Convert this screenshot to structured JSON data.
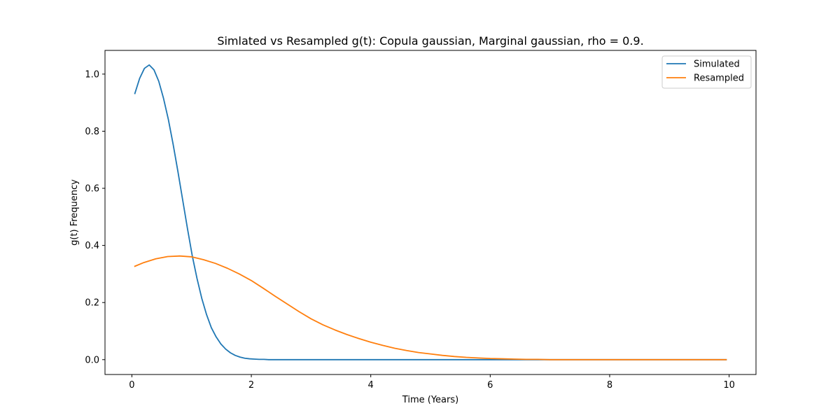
{
  "chart_data": {
    "type": "line",
    "title": "Simlated vs Resampled g(t): Copula gaussian, Marginal gaussian, rho =  0.9.",
    "xlabel": "Time (Years)",
    "ylabel": "g(t) Frequency",
    "xlim": [
      -0.45,
      10.45
    ],
    "ylim": [
      -0.052,
      1.083
    ],
    "xticks": [
      0,
      2,
      4,
      6,
      8,
      10
    ],
    "xtick_labels": [
      "0",
      "2",
      "4",
      "6",
      "8",
      "10"
    ],
    "yticks": [
      0.0,
      0.2,
      0.4,
      0.6,
      0.8,
      1.0
    ],
    "ytick_labels": [
      "0.0",
      "0.2",
      "0.4",
      "0.6",
      "0.8",
      "1.0"
    ],
    "grid": false,
    "legend_position": "top-right",
    "series": [
      {
        "name": "Simulated",
        "color": "#1f77b4",
        "x": [
          0.05,
          0.13,
          0.21,
          0.29,
          0.37,
          0.45,
          0.53,
          0.61,
          0.69,
          0.77,
          0.85,
          0.93,
          1.01,
          1.09,
          1.17,
          1.25,
          1.33,
          1.41,
          1.49,
          1.57,
          1.65,
          1.73,
          1.81,
          1.89,
          1.97,
          2.05,
          2.13,
          2.21,
          2.29,
          2.4,
          2.6,
          2.8,
          3.0,
          3.5,
          4.0,
          5.0,
          6.0,
          7.0,
          8.0,
          9.0,
          9.95
        ],
        "y": [
          0.932,
          0.985,
          1.02,
          1.032,
          1.015,
          0.975,
          0.915,
          0.842,
          0.755,
          0.66,
          0.56,
          0.46,
          0.365,
          0.285,
          0.215,
          0.158,
          0.112,
          0.08,
          0.055,
          0.037,
          0.024,
          0.015,
          0.009,
          0.005,
          0.003,
          0.002,
          0.001,
          0.001,
          0.0,
          0.0,
          0.0,
          0.0,
          0.0,
          0.0,
          0.0,
          0.0,
          0.0,
          0.0,
          0.0,
          0.0,
          0.0
        ]
      },
      {
        "name": "Resampled",
        "color": "#ff7f0e",
        "x": [
          0.05,
          0.2,
          0.4,
          0.6,
          0.8,
          1.0,
          1.2,
          1.4,
          1.6,
          1.8,
          2.0,
          2.2,
          2.4,
          2.6,
          2.8,
          3.0,
          3.2,
          3.4,
          3.6,
          3.8,
          4.0,
          4.2,
          4.4,
          4.6,
          4.8,
          5.0,
          5.2,
          5.4,
          5.6,
          5.8,
          6.0,
          6.2,
          6.4,
          6.6,
          6.8,
          7.0,
          7.5,
          8.0,
          8.5,
          9.0,
          9.5,
          9.95
        ],
        "y": [
          0.327,
          0.34,
          0.353,
          0.361,
          0.363,
          0.36,
          0.35,
          0.337,
          0.32,
          0.3,
          0.277,
          0.25,
          0.222,
          0.195,
          0.168,
          0.143,
          0.122,
          0.104,
          0.088,
          0.074,
          0.061,
          0.05,
          0.04,
          0.032,
          0.025,
          0.02,
          0.015,
          0.011,
          0.008,
          0.006,
          0.004,
          0.003,
          0.002,
          0.001,
          0.001,
          0.0,
          0.0,
          0.0,
          0.0,
          0.0,
          0.0,
          0.0
        ]
      }
    ]
  }
}
